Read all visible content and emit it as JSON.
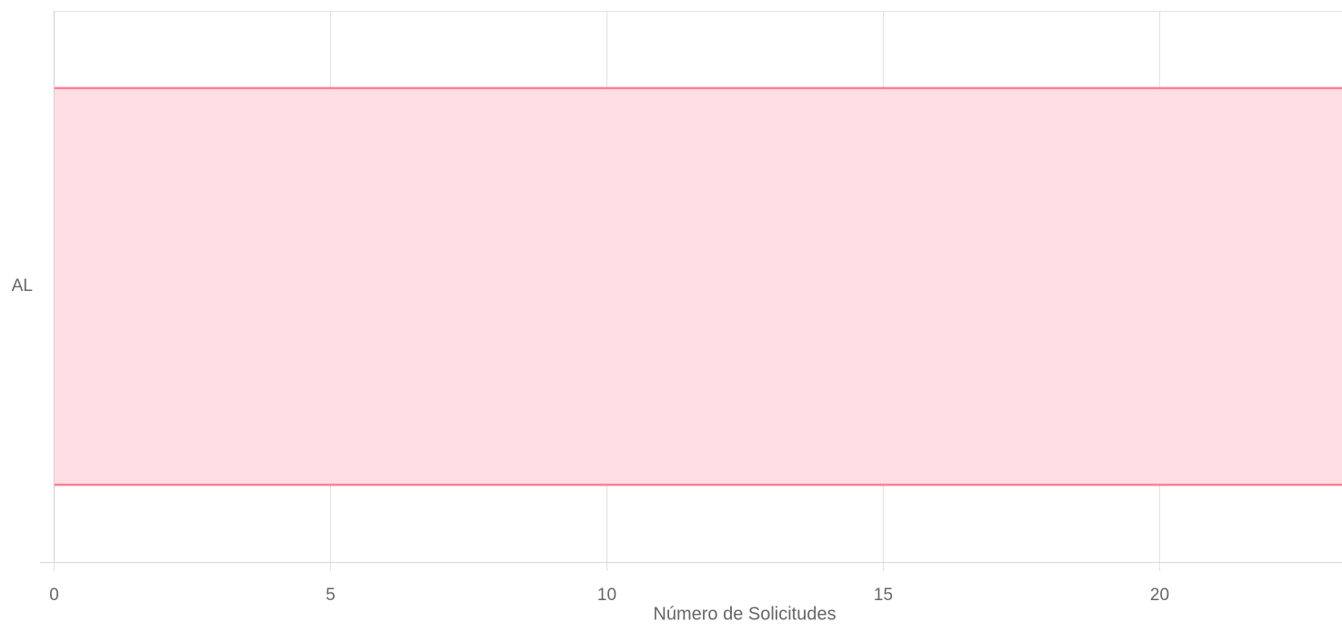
{
  "chart_data": {
    "type": "bar",
    "orientation": "horizontal",
    "categories": [
      "AL"
    ],
    "values": [
      23.3
    ],
    "title": "",
    "xlabel": "Número de Solicitudes",
    "ylabel": "",
    "xlim": [
      0,
      23.3
    ],
    "x_ticks": [
      0,
      5,
      10,
      15,
      20
    ],
    "grid": true,
    "legend": "none",
    "colors": {
      "bar_fill": "#ffdfe5",
      "bar_stroke": "#ff7f95",
      "grid": "#e1e1e1",
      "tick_text": "#666666"
    }
  }
}
